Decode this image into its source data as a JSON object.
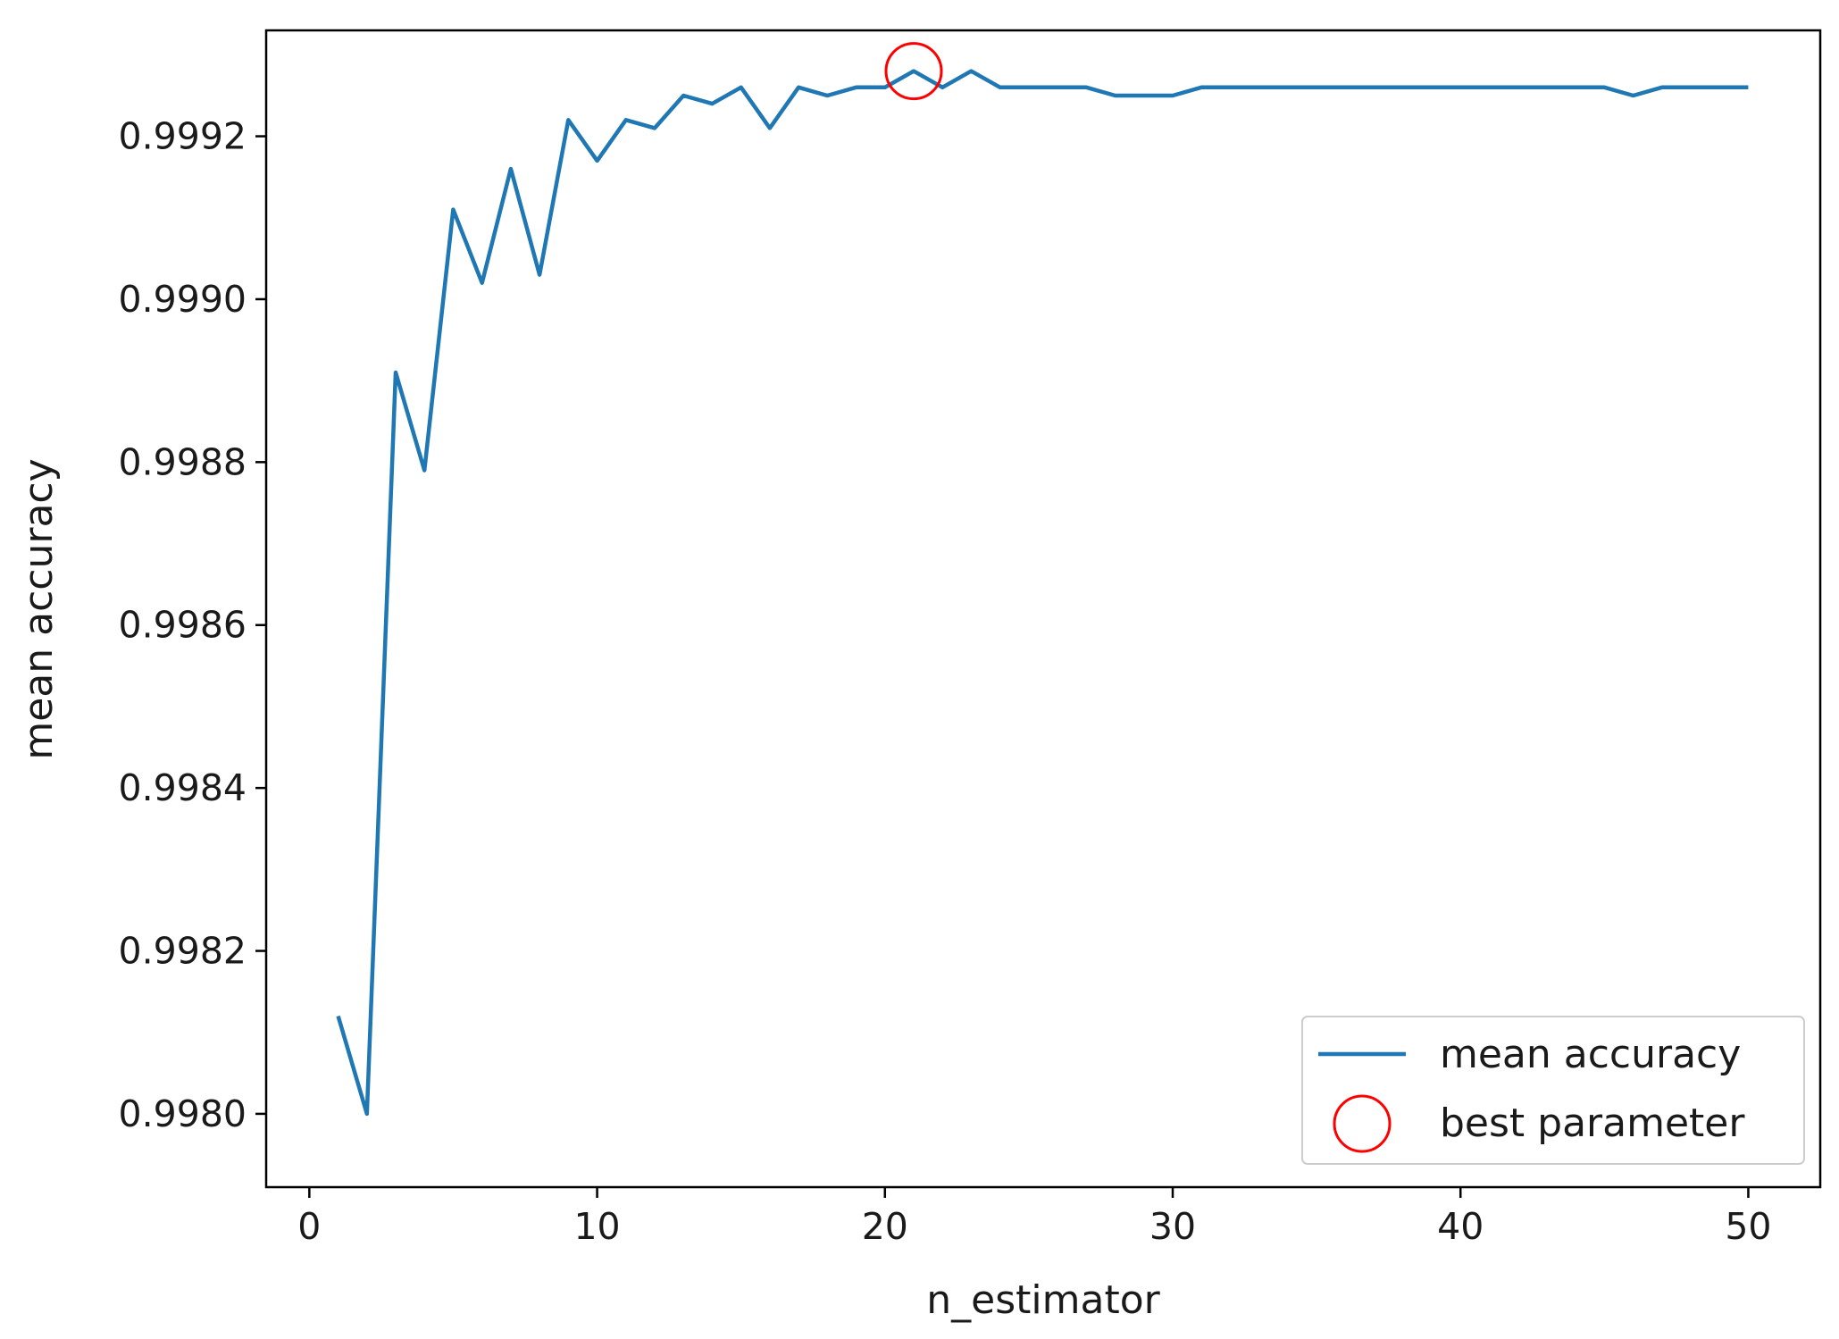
{
  "chart_data": {
    "type": "line",
    "title": "",
    "xlabel": "n_estimator",
    "ylabel": "mean accuracy",
    "xlim": [
      -1.5,
      52.5
    ],
    "ylim": [
      0.99791,
      0.99933
    ],
    "xticks": [
      0,
      10,
      20,
      30,
      40,
      50
    ],
    "xtick_labels": [
      "0",
      "10",
      "20",
      "30",
      "40",
      "50"
    ],
    "yticks": [
      0.998,
      0.9982,
      0.9984,
      0.9986,
      0.9988,
      0.999,
      0.9992
    ],
    "ytick_labels": [
      "0.9980",
      "0.9982",
      "0.9984",
      "0.9986",
      "0.9988",
      "0.9990",
      "0.9992"
    ],
    "grid": false,
    "legend_position": "bottom-right",
    "series": [
      {
        "name": "mean accuracy",
        "color": "#1f77b4",
        "x": [
          1,
          2,
          3,
          4,
          5,
          6,
          7,
          8,
          9,
          10,
          11,
          12,
          13,
          14,
          15,
          16,
          17,
          18,
          19,
          20,
          21,
          22,
          23,
          24,
          25,
          26,
          27,
          28,
          29,
          30,
          31,
          32,
          33,
          34,
          35,
          36,
          37,
          38,
          39,
          40,
          41,
          42,
          43,
          44,
          45,
          46,
          47,
          48,
          49,
          50
        ],
        "values": [
          0.99812,
          0.998,
          0.99891,
          0.99879,
          0.99911,
          0.99902,
          0.99916,
          0.99903,
          0.99922,
          0.99917,
          0.99922,
          0.99921,
          0.99925,
          0.99924,
          0.99926,
          0.99921,
          0.99926,
          0.99925,
          0.99926,
          0.99926,
          0.99928,
          0.99926,
          0.99928,
          0.99926,
          0.99926,
          0.99926,
          0.99926,
          0.99925,
          0.99925,
          0.99925,
          0.99926,
          0.99926,
          0.99926,
          0.99926,
          0.99926,
          0.99926,
          0.99926,
          0.99926,
          0.99926,
          0.99926,
          0.99926,
          0.99926,
          0.99926,
          0.99926,
          0.99926,
          0.99925,
          0.99926,
          0.99926,
          0.99926,
          0.99926
        ]
      },
      {
        "name": "best parameter",
        "color": "#ff0000",
        "marker": "open-circle",
        "x": [
          21
        ],
        "values": [
          0.99928
        ]
      }
    ]
  }
}
